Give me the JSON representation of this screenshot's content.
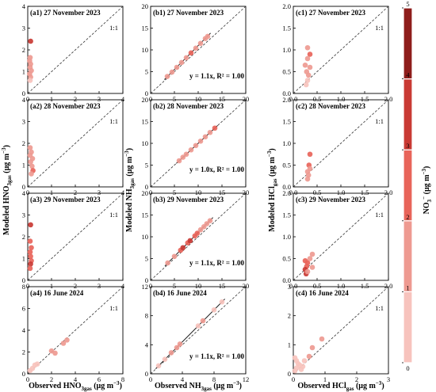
{
  "figure": {
    "row_y_label_main": "Modeled",
    "x_label_main": "Observed",
    "unit_text": " (μg m",
    "unit_exp": "−3",
    "unit_close": ")",
    "colorbar": {
      "label_main": "NO",
      "label_sub": "3",
      "label_sup": "−",
      "ticks": [
        "0",
        "1",
        "2",
        "3",
        "4",
        "5"
      ],
      "bin_colors": [
        "#f7c3bd",
        "#ee9a91",
        "#e8645a",
        "#c93a34",
        "#8e1d1b"
      ],
      "range": [
        0,
        5
      ]
    }
  },
  "chart_data": [
    {
      "type": "scatter",
      "title": "(a1) 27 November 2023",
      "column": "HNO3",
      "xlim": [
        0,
        4
      ],
      "ylim": [
        0,
        4
      ],
      "xticks": [
        "0",
        "1",
        "2",
        "3",
        "4"
      ],
      "yticks": [
        "0",
        "1",
        "2",
        "3",
        "4"
      ],
      "one_to_one_label": "1:1",
      "points": [
        [
          0.12,
          2.4,
          3.0
        ],
        [
          0.1,
          1.65,
          1.6
        ],
        [
          0.08,
          1.5,
          1.5
        ],
        [
          0.12,
          1.35,
          1.4
        ],
        [
          0.1,
          1.2,
          1.3
        ],
        [
          0.15,
          1.05,
          1.2
        ],
        [
          0.08,
          0.9,
          1.1
        ],
        [
          0.12,
          0.75,
          1.0
        ],
        [
          0.1,
          0.6,
          0.9
        ]
      ]
    },
    {
      "type": "scatter",
      "title": "(b1) 27 November 2023",
      "column": "NH3",
      "xlim": [
        0,
        20
      ],
      "ylim": [
        0,
        20
      ],
      "xticks": [
        "0",
        "5",
        "10",
        "15",
        "20"
      ],
      "yticks": [
        "0",
        "5",
        "10",
        "15",
        "20"
      ],
      "one_to_one_label": "",
      "fit_label": "y = 1.1x, R² = 1.00",
      "fit_slope": 1.1,
      "points": [
        [
          3.5,
          3.9,
          1.6
        ],
        [
          4.5,
          4.9,
          1.2
        ],
        [
          5.5,
          6.0,
          1.5
        ],
        [
          6.5,
          7.1,
          1.3
        ],
        [
          7.5,
          8.2,
          1.8
        ],
        [
          8.5,
          9.3,
          2.0
        ],
        [
          9.5,
          10.4,
          1.6
        ],
        [
          10.5,
          11.5,
          1.8
        ],
        [
          11.5,
          12.6,
          1.5
        ],
        [
          12.0,
          13.1,
          1.4
        ]
      ]
    },
    {
      "type": "scatter",
      "title": "(c1) 27 November 2023",
      "column": "HCl",
      "xlim": [
        0,
        2
      ],
      "ylim": [
        0,
        2
      ],
      "xticks": [
        "0.0",
        "0.5",
        "1.0",
        "1.5",
        "2.0"
      ],
      "yticks": [
        "0.0",
        "0.5",
        "1.0",
        "1.5",
        "2.0"
      ],
      "one_to_one_label": "1:1",
      "points": [
        [
          0.3,
          1.05,
          1.3
        ],
        [
          0.35,
          0.9,
          2.5
        ],
        [
          0.3,
          0.8,
          1.6
        ],
        [
          0.25,
          0.65,
          1.4
        ],
        [
          0.35,
          0.6,
          1.8
        ],
        [
          0.28,
          0.5,
          1.2
        ],
        [
          0.32,
          0.42,
          1.5
        ],
        [
          0.3,
          0.3,
          0.9
        ],
        [
          0.27,
          0.2,
          0.6
        ]
      ]
    },
    {
      "type": "scatter",
      "title": "(a2) 28 November 2023",
      "column": "HNO3",
      "xlim": [
        0,
        4
      ],
      "ylim": [
        0,
        4
      ],
      "xticks": [
        "0",
        "1",
        "2",
        "3",
        "4"
      ],
      "yticks": [
        "0",
        "1",
        "2",
        "3",
        "4"
      ],
      "one_to_one_label": "1:1",
      "points": [
        [
          0.1,
          1.8,
          1.4
        ],
        [
          0.15,
          1.6,
          1.5
        ],
        [
          0.1,
          1.45,
          1.3
        ],
        [
          0.2,
          1.3,
          1.6
        ],
        [
          0.12,
          1.15,
          1.2
        ],
        [
          0.18,
          0.95,
          1.7
        ],
        [
          0.22,
          0.75,
          2.2
        ],
        [
          0.15,
          0.6,
          1.1
        ]
      ]
    },
    {
      "type": "scatter",
      "title": "(b2) 28 November 2023",
      "column": "NH3",
      "xlim": [
        0,
        20
      ],
      "ylim": [
        0,
        20
      ],
      "xticks": [
        "0",
        "5",
        "10",
        "15",
        "20"
      ],
      "yticks": [
        "0",
        "5",
        "10",
        "15",
        "20"
      ],
      "one_to_one_label": "",
      "fit_label": "y = 1.0x, R² = 1.00",
      "fit_slope": 1.0,
      "points": [
        [
          6.0,
          6.0,
          1.4
        ],
        [
          6.8,
          6.8,
          1.3
        ],
        [
          7.5,
          7.5,
          1.5
        ],
        [
          8.5,
          8.5,
          1.6
        ],
        [
          9.5,
          9.5,
          1.4
        ],
        [
          10.5,
          10.5,
          1.8
        ],
        [
          11.5,
          11.5,
          1.5
        ],
        [
          12.5,
          12.5,
          1.6
        ],
        [
          13.5,
          13.5,
          2.2
        ]
      ]
    },
    {
      "type": "scatter",
      "title": "(c2) 28 November 2023",
      "column": "HCl",
      "xlim": [
        0,
        2
      ],
      "ylim": [
        0,
        2
      ],
      "xticks": [
        "0.0",
        "0.5",
        "1.0",
        "1.5",
        "2.0"
      ],
      "yticks": [
        "0.0",
        "0.5",
        "1.0",
        "1.5",
        "2.0"
      ],
      "one_to_one_label": "1:1",
      "points": [
        [
          0.35,
          0.75,
          2.3
        ],
        [
          0.33,
          0.5,
          2.0
        ],
        [
          0.35,
          0.42,
          1.8
        ],
        [
          0.3,
          0.35,
          1.6
        ],
        [
          0.32,
          0.27,
          1.5
        ],
        [
          0.3,
          0.18,
          1.4
        ]
      ]
    },
    {
      "type": "scatter",
      "title": "(a3) 29 November 2023",
      "column": "HNO3",
      "xlim": [
        0,
        4
      ],
      "ylim": [
        0,
        4
      ],
      "xticks": [
        "0",
        "1",
        "2",
        "3",
        "4"
      ],
      "yticks": [
        "0",
        "1",
        "2",
        "3",
        "4"
      ],
      "one_to_one_label": "1:1",
      "points": [
        [
          0.12,
          2.55,
          3.6
        ],
        [
          0.1,
          1.8,
          2.6
        ],
        [
          0.15,
          1.5,
          2.2
        ],
        [
          0.1,
          1.3,
          2.0
        ],
        [
          0.12,
          1.1,
          2.5
        ],
        [
          0.15,
          0.9,
          2.1
        ],
        [
          0.12,
          0.75,
          3.2
        ],
        [
          0.1,
          0.55,
          2.4
        ]
      ]
    },
    {
      "type": "scatter",
      "title": "(b3) 29 November 2023",
      "column": "NH3",
      "xlim": [
        0,
        20
      ],
      "ylim": [
        0,
        20
      ],
      "xticks": [
        "0",
        "5",
        "10",
        "15",
        "20"
      ],
      "yticks": [
        "0",
        "5",
        "10",
        "15",
        "20"
      ],
      "one_to_one_label": "",
      "fit_label": "y = 1.1x, R² = 1.00",
      "fit_slope": 1.1,
      "points": [
        [
          3.6,
          4.0,
          1.2
        ],
        [
          5.0,
          5.5,
          1.8
        ],
        [
          6.3,
          6.9,
          2.4
        ],
        [
          6.8,
          7.5,
          3.6
        ],
        [
          7.8,
          8.6,
          2.2
        ],
        [
          8.3,
          9.1,
          3.3
        ],
        [
          9.3,
          10.2,
          2.0
        ],
        [
          9.8,
          10.8,
          2.6
        ],
        [
          10.5,
          11.6,
          1.5
        ],
        [
          11.2,
          12.3,
          1.8
        ],
        [
          11.8,
          13.0,
          1.6
        ],
        [
          12.5,
          13.7,
          1.4
        ]
      ]
    },
    {
      "type": "scatter",
      "title": "(c3) 29 November 2023",
      "column": "HCl",
      "xlim": [
        0,
        2
      ],
      "ylim": [
        0,
        2
      ],
      "xticks": [
        "0.0",
        "0.5",
        "1.0",
        "1.5",
        "2.0"
      ],
      "yticks": [
        "0.0",
        "0.5",
        "1.0",
        "1.5",
        "2.0"
      ],
      "one_to_one_label": "1:1",
      "points": [
        [
          0.4,
          0.6,
          1.3
        ],
        [
          0.35,
          0.5,
          1.5
        ],
        [
          0.25,
          0.45,
          2.6
        ],
        [
          0.3,
          0.4,
          2.2
        ],
        [
          0.28,
          0.32,
          2.5
        ],
        [
          0.25,
          0.25,
          3.1
        ],
        [
          0.27,
          0.15,
          3.4
        ],
        [
          0.3,
          0.2,
          1.6
        ],
        [
          0.4,
          0.3,
          1.4
        ]
      ]
    },
    {
      "type": "scatter",
      "title": "(a4) 16 June 2024",
      "column": "HNO3",
      "xlim": [
        0,
        8
      ],
      "ylim": [
        0,
        8
      ],
      "xticks": [
        "0",
        "2",
        "4",
        "6",
        "8"
      ],
      "yticks": [
        "0",
        "2",
        "4",
        "6",
        "8"
      ],
      "one_to_one_label": "1:1",
      "points": [
        [
          0.2,
          0.3,
          0.8
        ],
        [
          0.4,
          0.5,
          0.7
        ],
        [
          0.6,
          0.8,
          0.9
        ],
        [
          0.8,
          0.9,
          0.6
        ],
        [
          2.0,
          2.1,
          1.6
        ],
        [
          2.3,
          1.9,
          1.3
        ],
        [
          3.3,
          3.1,
          1.4
        ],
        [
          3.0,
          2.8,
          1.1
        ]
      ]
    },
    {
      "type": "scatter",
      "title": "(b4) 16 June 2024",
      "column": "NH3",
      "xlim": [
        0,
        12
      ],
      "ylim": [
        0,
        12
      ],
      "xticks": [
        "0",
        "4",
        "8",
        "12"
      ],
      "yticks": [
        "0",
        "4",
        "8",
        "12"
      ],
      "one_to_one_label": "",
      "fit_label": "y = 1.1x, R² = 1.00",
      "fit_slope": 1.1,
      "points": [
        [
          1.0,
          1.1,
          0.9
        ],
        [
          1.8,
          2.0,
          0.8
        ],
        [
          2.6,
          2.9,
          1.0
        ],
        [
          3.3,
          3.6,
          1.2
        ],
        [
          3.7,
          4.1,
          1.4
        ],
        [
          6.0,
          6.6,
          0.9
        ],
        [
          6.6,
          7.3,
          1.1
        ],
        [
          8.0,
          8.8,
          0.8
        ],
        [
          9.0,
          9.9,
          0.7
        ]
      ]
    },
    {
      "type": "scatter",
      "title": "(c4) 16 June 2024",
      "column": "HCl",
      "xlim": [
        0,
        3
      ],
      "ylim": [
        0,
        3
      ],
      "xticks": [
        "0",
        "1",
        "2",
        "3"
      ],
      "yticks": [
        "0",
        "1",
        "2",
        "3"
      ],
      "one_to_one_label": "1:1",
      "points": [
        [
          0.05,
          0.55,
          0.6
        ],
        [
          0.1,
          0.45,
          0.5
        ],
        [
          0.15,
          0.35,
          0.7
        ],
        [
          0.2,
          0.3,
          0.5
        ],
        [
          0.1,
          0.2,
          0.6
        ],
        [
          0.3,
          0.25,
          0.4
        ],
        [
          0.5,
          0.6,
          1.1
        ],
        [
          0.35,
          0.45,
          0.7
        ],
        [
          0.9,
          1.2,
          1.8
        ],
        [
          0.6,
          0.9,
          1.3
        ],
        [
          0.05,
          0.1,
          0.3
        ],
        [
          0.25,
          0.15,
          0.5
        ]
      ]
    }
  ]
}
